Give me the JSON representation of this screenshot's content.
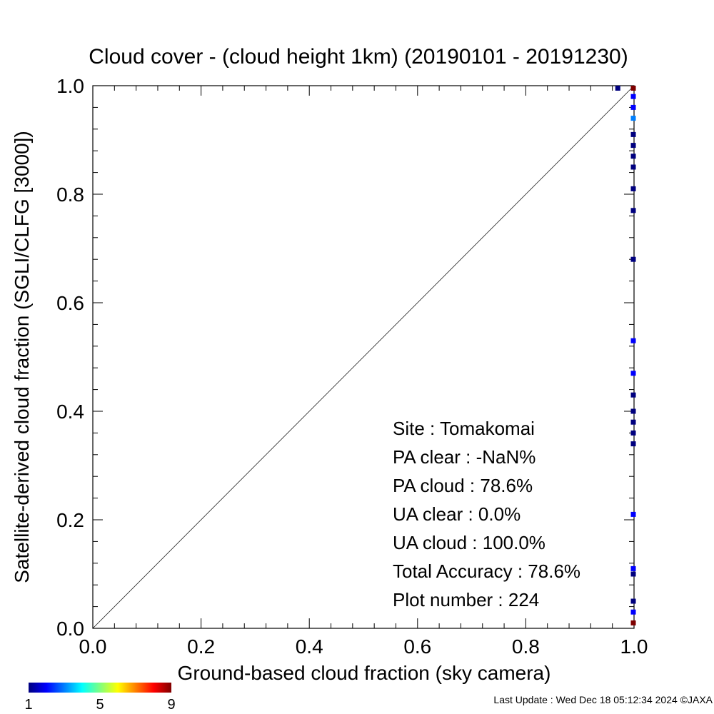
{
  "chart_data": {
    "type": "scatter",
    "title": "Cloud cover - (cloud height 1km)  (20190101 - 20191230)",
    "xlabel": "Ground-based cloud fraction (sky camera)",
    "ylabel": "Satellite-derived cloud fraction (SGLI/CLFG [3000])",
    "xlim": [
      0.0,
      1.0
    ],
    "ylim": [
      0.0,
      1.0
    ],
    "x_ticks": [
      "0.0",
      "0.2",
      "0.4",
      "0.6",
      "0.8",
      "1.0"
    ],
    "y_ticks": [
      "0.0",
      "0.2",
      "0.4",
      "0.6",
      "0.8",
      "1.0"
    ],
    "grid": false,
    "reference_line": "y = x",
    "color_scale": {
      "ticks": [
        "1",
        "5",
        "9"
      ],
      "min": 1,
      "max": 9,
      "colors": [
        "#00007f",
        "#0000ff",
        "#007fff",
        "#00ffff",
        "#7fff7f",
        "#ffff00",
        "#ff7f00",
        "#ff0000",
        "#7f0000"
      ]
    },
    "points": [
      {
        "x": 0.97,
        "y": 1.0,
        "count": 1
      },
      {
        "x": 1.0,
        "y": 1.0,
        "count": 9
      },
      {
        "x": 1.0,
        "y": 0.98,
        "count": 2
      },
      {
        "x": 1.0,
        "y": 0.96,
        "count": 2
      },
      {
        "x": 1.0,
        "y": 0.94,
        "count": 3
      },
      {
        "x": 1.0,
        "y": 0.91,
        "count": 1
      },
      {
        "x": 1.0,
        "y": 0.89,
        "count": 1
      },
      {
        "x": 1.0,
        "y": 0.87,
        "count": 1
      },
      {
        "x": 1.0,
        "y": 0.85,
        "count": 1
      },
      {
        "x": 1.0,
        "y": 0.81,
        "count": 1
      },
      {
        "x": 1.0,
        "y": 0.77,
        "count": 1
      },
      {
        "x": 1.0,
        "y": 0.68,
        "count": 1
      },
      {
        "x": 1.0,
        "y": 0.53,
        "count": 2
      },
      {
        "x": 1.0,
        "y": 0.47,
        "count": 2
      },
      {
        "x": 1.0,
        "y": 0.43,
        "count": 1
      },
      {
        "x": 1.0,
        "y": 0.4,
        "count": 1
      },
      {
        "x": 1.0,
        "y": 0.38,
        "count": 1
      },
      {
        "x": 1.0,
        "y": 0.36,
        "count": 1
      },
      {
        "x": 1.0,
        "y": 0.34,
        "count": 1
      },
      {
        "x": 1.0,
        "y": 0.21,
        "count": 2
      },
      {
        "x": 1.0,
        "y": 0.11,
        "count": 2
      },
      {
        "x": 1.0,
        "y": 0.1,
        "count": 1
      },
      {
        "x": 1.0,
        "y": 0.05,
        "count": 1
      },
      {
        "x": 1.0,
        "y": 0.03,
        "count": 2
      },
      {
        "x": 1.0,
        "y": 0.01,
        "count": 9
      }
    ]
  },
  "stats": {
    "site": "Site : Tomakomai",
    "pa_clear": "PA clear :  -NaN%",
    "pa_cloud": "PA cloud :  78.6%",
    "ua_clear": "UA clear :   0.0%",
    "ua_cloud": "UA cloud : 100.0%",
    "total_accuracy": "Total Accuracy :  78.6%",
    "plot_number": "Plot number :       224"
  },
  "footer": {
    "last_update": "Last Update : Wed Dec 18 05:12:34 2024  ©JAXA"
  }
}
